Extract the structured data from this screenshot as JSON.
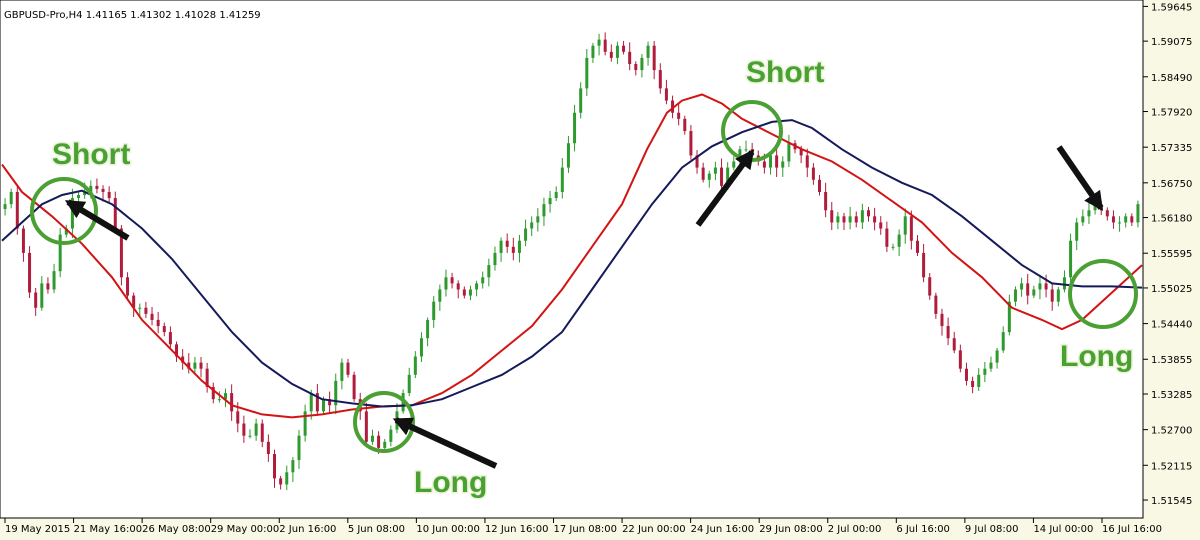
{
  "symbol_info": "GBPUSD-Pro,H4  1.41165 1.41302 1.41028 1.41259",
  "colors": {
    "background": "#f8f8e4",
    "bull_candle": "#2e9a2e",
    "bear_candle": "#b01c3c",
    "fast_ma": "#d21414",
    "slow_ma": "#141a5a",
    "annotation": "#4aa032",
    "arrow": "#111111"
  },
  "annotations": [
    {
      "text": "Short",
      "icon": "circle",
      "arrow": "arrow"
    },
    {
      "text": "Long",
      "icon": "circle",
      "arrow": "arrow"
    },
    {
      "text": "Short",
      "icon": "circle",
      "arrow": "arrow"
    },
    {
      "text": "Long",
      "icon": "circle",
      "arrow": "none"
    }
  ],
  "arrow_only": {
    "icon": "arrow"
  },
  "chart_data": {
    "type": "candlestick",
    "ylim": [
      1.5125,
      1.5975
    ],
    "grid": false,
    "y_ticks": [
      "1.59645",
      "1.59075",
      "1.58490",
      "1.57920",
      "1.57335",
      "1.56750",
      "1.56180",
      "1.55595",
      "1.55025",
      "1.54440",
      "1.53855",
      "1.53285",
      "1.52700",
      "1.52115",
      "1.51545"
    ],
    "x_ticks": [
      "19 May 2015",
      "21 May 16:00",
      "26 May 08:00",
      "29 May 00:00",
      "2 Jun 16:00",
      "5 Jun 08:00",
      "10 Jun 00:00",
      "12 Jun 16:00",
      "17 Jun 08:00",
      "22 Jun 00:00",
      "24 Jun 16:00",
      "29 Jun 08:00",
      "2 Jul 00:00",
      "6 Jul 16:00",
      "9 Jul 08:00",
      "14 Jul 00:00",
      "16 Jul 16:00"
    ],
    "close": [
      1.564,
      1.566,
      1.56,
      1.556,
      1.5495,
      1.547,
      1.551,
      1.55,
      1.553,
      1.559,
      1.56,
      1.565,
      1.5655,
      1.566,
      1.567,
      1.5665,
      1.566,
      1.565,
      1.56,
      1.552,
      1.549,
      1.547,
      1.547,
      1.546,
      1.545,
      1.544,
      1.543,
      1.541,
      1.539,
      1.538,
      1.537,
      1.538,
      1.537,
      1.534,
      1.532,
      1.532,
      1.533,
      1.53,
      1.528,
      1.526,
      1.526,
      1.528,
      1.525,
      1.523,
      1.519,
      1.518,
      1.52,
      1.522,
      1.526,
      1.53,
      1.533,
      1.53,
      1.532,
      1.531,
      1.535,
      1.538,
      1.536,
      1.532,
      1.53,
      1.525,
      1.526,
      1.524,
      1.525,
      1.527,
      1.53,
      1.533,
      1.536,
      1.539,
      1.542,
      1.545,
      1.548,
      1.55,
      1.552,
      1.551,
      1.55,
      1.549,
      1.55,
      1.551,
      1.552,
      1.554,
      1.556,
      1.558,
      1.557,
      1.556,
      1.558,
      1.56,
      1.561,
      1.562,
      1.564,
      1.565,
      1.566,
      1.57,
      1.574,
      1.579,
      1.583,
      1.588,
      1.59,
      1.591,
      1.589,
      1.588,
      1.59,
      1.589,
      1.587,
      1.586,
      1.588,
      1.59,
      1.586,
      1.583,
      1.581,
      1.579,
      1.578,
      1.576,
      1.572,
      1.57,
      1.568,
      1.569,
      1.57,
      1.567,
      1.57,
      1.571,
      1.573,
      1.573,
      1.572,
      1.571,
      1.57,
      1.572,
      1.57,
      1.571,
      1.574,
      1.573,
      1.572,
      1.57,
      1.568,
      1.566,
      1.563,
      1.561,
      1.562,
      1.561,
      1.562,
      1.561,
      1.563,
      1.562,
      1.561,
      1.56,
      1.557,
      1.557,
      1.559,
      1.562,
      1.558,
      1.556,
      1.552,
      1.549,
      1.546,
      1.544,
      1.542,
      1.54,
      1.537,
      1.535,
      1.534,
      1.536,
      1.537,
      1.538,
      1.54,
      1.543,
      1.548,
      1.55,
      1.551,
      1.549,
      1.55,
      1.551,
      1.55,
      1.548,
      1.55,
      1.552,
      1.558,
      1.561,
      1.562,
      1.563,
      1.564,
      1.563,
      1.562,
      1.561,
      1.561,
      1.562,
      1.561,
      1.564
    ],
    "fast_ma": [
      [
        0,
        1.5705
      ],
      [
        20,
        1.566
      ],
      [
        50,
        1.562
      ],
      [
        80,
        1.5575
      ],
      [
        110,
        1.552
      ],
      [
        140,
        1.545
      ],
      [
        170,
        1.54
      ],
      [
        200,
        1.535
      ],
      [
        230,
        1.531
      ],
      [
        260,
        1.5295
      ],
      [
        290,
        1.529
      ],
      [
        320,
        1.5295
      ],
      [
        350,
        1.5303
      ],
      [
        380,
        1.5308
      ],
      [
        410,
        1.531
      ],
      [
        440,
        1.533
      ],
      [
        470,
        1.536
      ],
      [
        500,
        1.54
      ],
      [
        530,
        1.544
      ],
      [
        560,
        1.55
      ],
      [
        590,
        1.557
      ],
      [
        620,
        1.564
      ],
      [
        645,
        1.573
      ],
      [
        665,
        1.579
      ],
      [
        680,
        1.581
      ],
      [
        700,
        1.582
      ],
      [
        720,
        1.5805
      ],
      [
        740,
        1.578
      ],
      [
        770,
        1.5755
      ],
      [
        800,
        1.573
      ],
      [
        830,
        1.571
      ],
      [
        860,
        1.568
      ],
      [
        890,
        1.5645
      ],
      [
        920,
        1.561
      ],
      [
        950,
        1.556
      ],
      [
        980,
        1.552
      ],
      [
        1010,
        1.547
      ],
      [
        1040,
        1.545
      ],
      [
        1060,
        1.5435
      ],
      [
        1080,
        1.545
      ],
      [
        1110,
        1.5495
      ],
      [
        1140,
        1.554
      ]
    ],
    "slow_ma": [
      [
        0,
        1.558
      ],
      [
        20,
        1.561
      ],
      [
        40,
        1.564
      ],
      [
        60,
        1.5655
      ],
      [
        80,
        1.5662
      ],
      [
        110,
        1.564
      ],
      [
        140,
        1.56
      ],
      [
        170,
        1.555
      ],
      [
        200,
        1.549
      ],
      [
        230,
        1.543
      ],
      [
        260,
        1.538
      ],
      [
        290,
        1.5345
      ],
      [
        320,
        1.532
      ],
      [
        350,
        1.5313
      ],
      [
        380,
        1.5308
      ],
      [
        410,
        1.531
      ],
      [
        440,
        1.532
      ],
      [
        470,
        1.534
      ],
      [
        500,
        1.536
      ],
      [
        530,
        1.539
      ],
      [
        560,
        1.543
      ],
      [
        590,
        1.55
      ],
      [
        620,
        1.557
      ],
      [
        650,
        1.564
      ],
      [
        680,
        1.57
      ],
      [
        710,
        1.5735
      ],
      [
        740,
        1.5758
      ],
      [
        770,
        1.5775
      ],
      [
        790,
        1.5778
      ],
      [
        810,
        1.5765
      ],
      [
        840,
        1.573
      ],
      [
        870,
        1.57
      ],
      [
        900,
        1.5675
      ],
      [
        930,
        1.5655
      ],
      [
        960,
        1.562
      ],
      [
        990,
        1.558
      ],
      [
        1020,
        1.554
      ],
      [
        1050,
        1.551
      ],
      [
        1080,
        1.5505
      ],
      [
        1110,
        1.5505
      ],
      [
        1140,
        1.5503
      ]
    ]
  }
}
